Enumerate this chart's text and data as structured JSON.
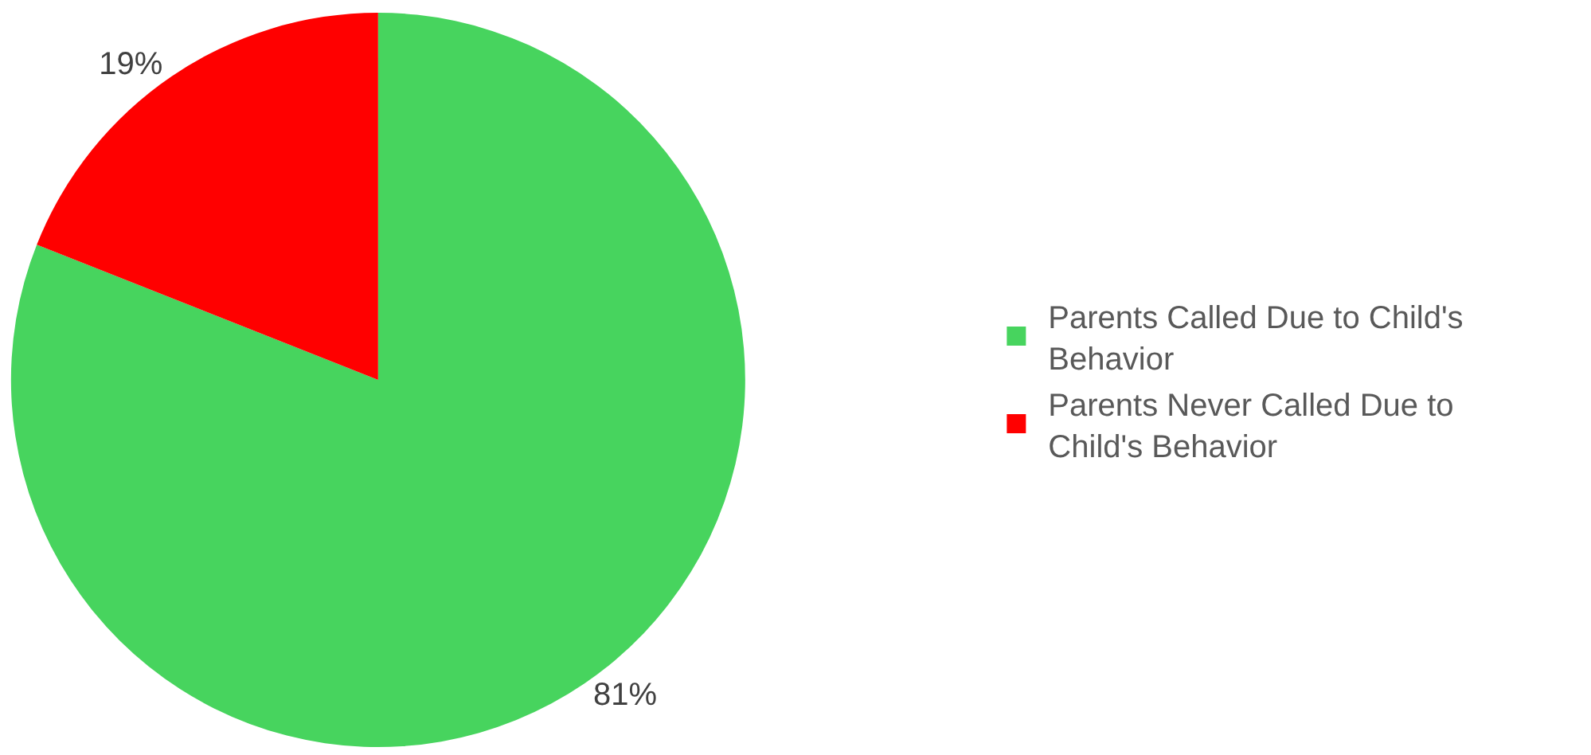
{
  "chart_data": {
    "type": "pie",
    "categories": [
      "Parents Called Due to Child's Behavior",
      "Parents Never Called Due to Child's Behavior"
    ],
    "values": [
      81,
      19
    ],
    "colors": [
      "#47d45e",
      "#ff0000"
    ],
    "value_labels": [
      "81%",
      "19%"
    ],
    "legend": "right"
  }
}
